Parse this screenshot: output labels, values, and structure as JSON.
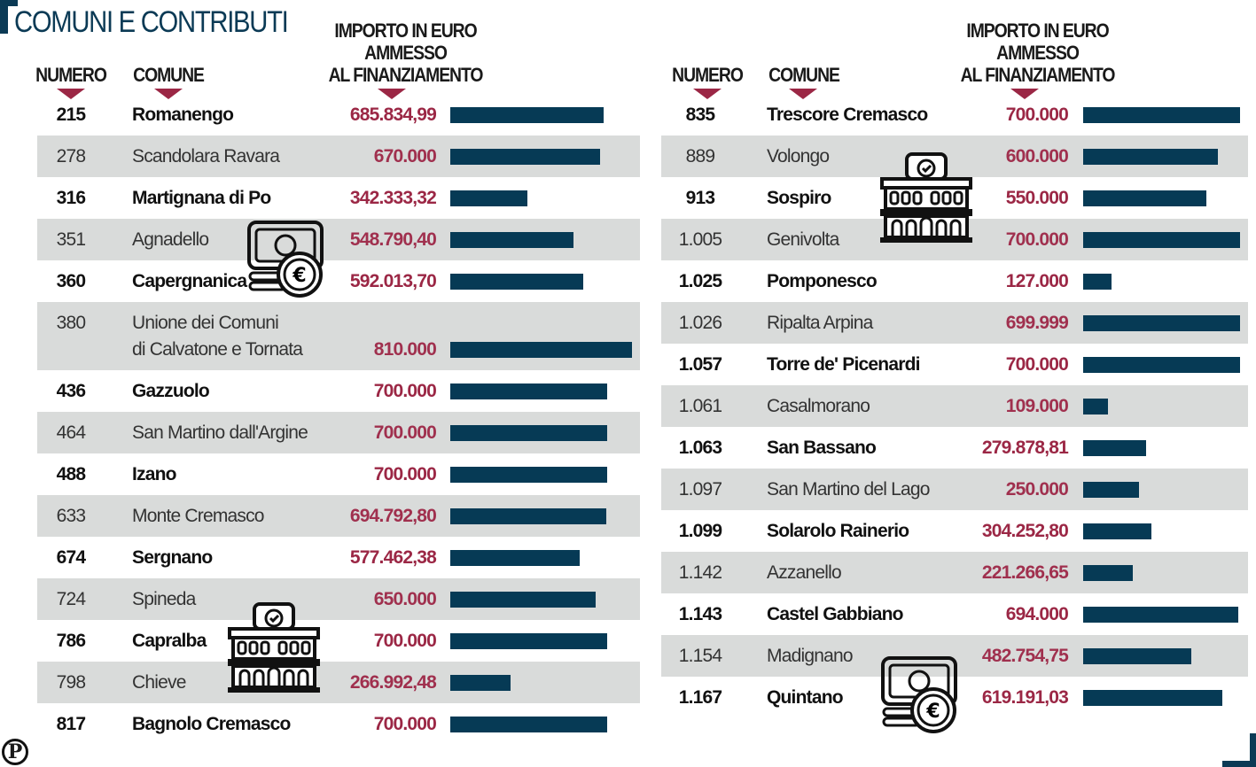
{
  "title": "COMUNI E CONTRIBUTI",
  "headers": {
    "numero": "NUMERO",
    "comune": "COMUNE",
    "importo": [
      "IMPORTO IN EURO",
      "AMMESSO",
      "AL FINANZIAMENTO"
    ]
  },
  "logo_letter": "P",
  "colors": {
    "accent": "#9b2745",
    "bar": "#063a55",
    "stripe": "#d9dbda",
    "title": "#0b3a55"
  },
  "chart_data": {
    "type": "table",
    "title": "COMUNI E CONTRIBUTI",
    "columns": [
      "NUMERO",
      "COMUNE",
      "IMPORTO IN EURO AMMESSO AL FINANZIAMENTO"
    ],
    "left": [
      {
        "numero": "215",
        "comune": "Romanengo",
        "importo": "685.834,99",
        "value": 685834.99
      },
      {
        "numero": "278",
        "comune": "Scandolara Ravara",
        "importo": "670.000",
        "value": 670000
      },
      {
        "numero": "316",
        "comune": "Martignana di Po",
        "importo": "342.333,32",
        "value": 342333.32
      },
      {
        "numero": "351",
        "comune": "Agnadello",
        "importo": "548.790,40",
        "value": 548790.4
      },
      {
        "numero": "360",
        "comune": "Capergnanica",
        "importo": "592.013,70",
        "value": 592013.7
      },
      {
        "numero": "380",
        "comune": "Unione dei Comuni",
        "comune2": "di Calvatone e Tornata",
        "importo": "810.000",
        "value": 810000
      },
      {
        "numero": "436",
        "comune": "Gazzuolo",
        "importo": "700.000",
        "value": 700000
      },
      {
        "numero": "464",
        "comune": "San Martino dall'Argine",
        "importo": "700.000",
        "value": 700000
      },
      {
        "numero": "488",
        "comune": "Izano",
        "importo": "700.000",
        "value": 700000
      },
      {
        "numero": "633",
        "comune": "Monte Cremasco",
        "importo": "694.792,80",
        "value": 694792.8
      },
      {
        "numero": "674",
        "comune": "Sergnano",
        "importo": "577.462,38",
        "value": 577462.38
      },
      {
        "numero": "724",
        "comune": "Spineda",
        "importo": "650.000",
        "value": 650000
      },
      {
        "numero": "786",
        "comune": "Capralba",
        "importo": "700.000",
        "value": 700000
      },
      {
        "numero": "798",
        "comune": "Chieve",
        "importo": "266.992,48",
        "value": 266992.48
      },
      {
        "numero": "817",
        "comune": "Bagnolo Cremasco",
        "importo": "700.000",
        "value": 700000
      }
    ],
    "right": [
      {
        "numero": "835",
        "comune": "Trescore Cremasco",
        "importo": "700.000",
        "value": 700000
      },
      {
        "numero": "889",
        "comune": "Volongo",
        "importo": "600.000",
        "value": 600000
      },
      {
        "numero": "913",
        "comune": "Sospiro",
        "importo": "550.000",
        "value": 550000
      },
      {
        "numero": "1.005",
        "comune": "Genivolta",
        "importo": "700.000",
        "value": 700000
      },
      {
        "numero": "1.025",
        "comune": "Pomponesco",
        "importo": "127.000",
        "value": 127000
      },
      {
        "numero": "1.026",
        "comune": "Ripalta Arpina",
        "importo": "699.999",
        "value": 699999
      },
      {
        "numero": "1.057",
        "comune": "Torre de' Picenardi",
        "importo": "700.000",
        "value": 700000
      },
      {
        "numero": "1.061",
        "comune": "Casalmorano",
        "importo": "109.000",
        "value": 109000
      },
      {
        "numero": "1.063",
        "comune": "San Bassano",
        "importo": "279.878,81",
        "value": 279878.81
      },
      {
        "numero": "1.097",
        "comune": "San Martino del Lago",
        "importo": "250.000",
        "value": 250000
      },
      {
        "numero": "1.099",
        "comune": "Solarolo Rainerio",
        "importo": "304.252,80",
        "value": 304252.8
      },
      {
        "numero": "1.142",
        "comune": "Azzanello",
        "importo": "221.266,65",
        "value": 221266.65
      },
      {
        "numero": "1.143",
        "comune": "Castel Gabbiano",
        "importo": "694.000",
        "value": 694000
      },
      {
        "numero": "1.154",
        "comune": "Madignano",
        "importo": "482.754,75",
        "value": 482754.75
      },
      {
        "numero": "1.167",
        "comune": "Quintano",
        "importo": "619.191,03",
        "value": 619191.03
      }
    ]
  }
}
